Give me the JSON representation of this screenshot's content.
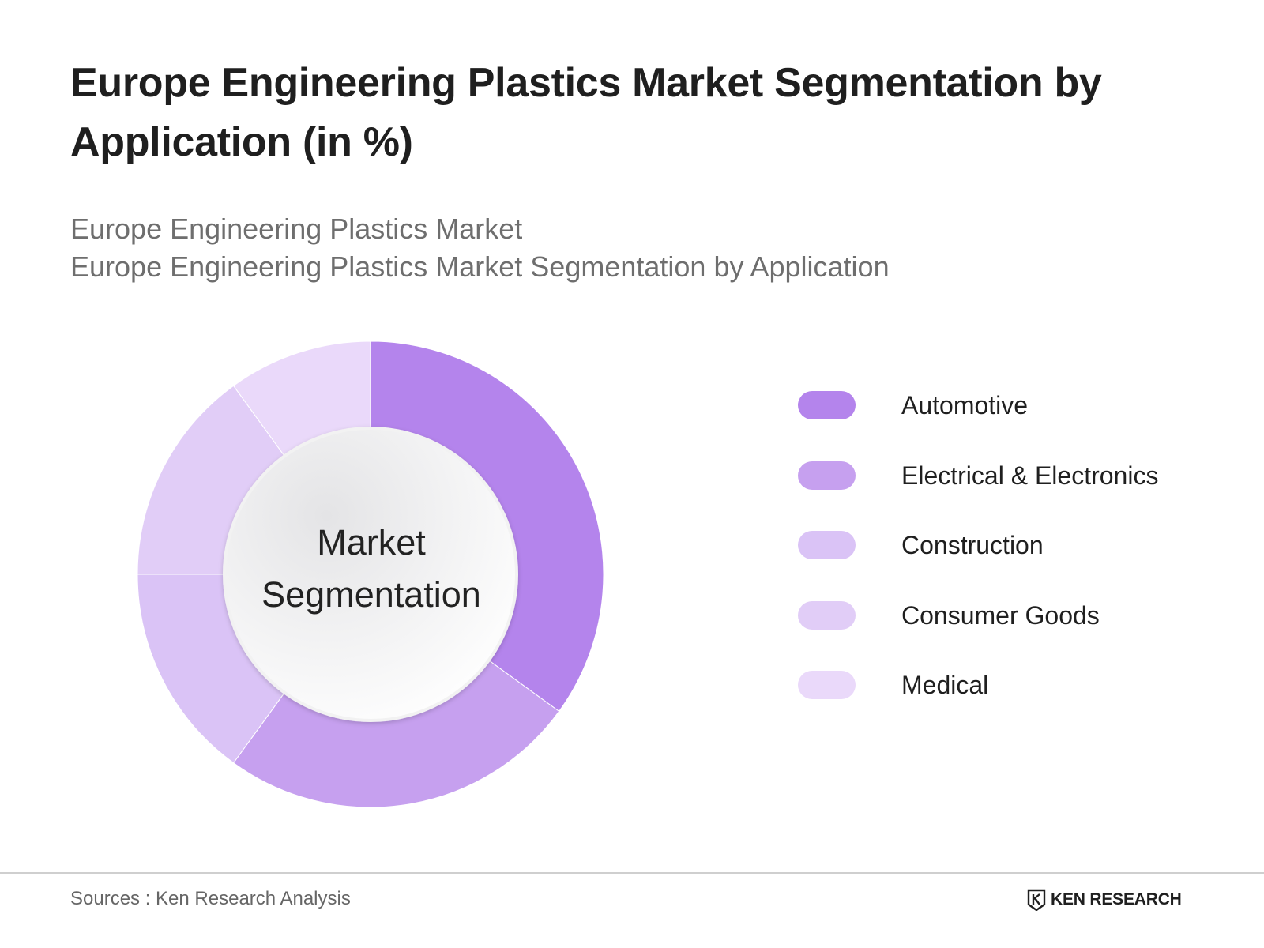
{
  "title": "Europe Engineering Plastics Market Segmentation by Application (in %)",
  "subtitle_lines": [
    "Europe Engineering Plastics Market",
    "Europe Engineering Plastics Market Segmentation by Application"
  ],
  "center_label_lines": [
    "Market",
    "Segmentation"
  ],
  "source": "Sources : Ken Research Analysis",
  "brand": {
    "name": "KEN RESEARCH",
    "logo_icon": "ken-research-logo-icon"
  },
  "chart_data": {
    "type": "pie",
    "variant": "donut",
    "categories": [
      "Automotive",
      "Electrical & Electronics",
      "Construction",
      "Consumer Goods",
      "Medical"
    ],
    "values": [
      35,
      25,
      15,
      15,
      10
    ],
    "colors": [
      "#b484ec",
      "#c6a0ef",
      "#dac3f6",
      "#e1cdf7",
      "#ead9fa"
    ],
    "legend_position": "right",
    "start": "top, clockwise"
  }
}
